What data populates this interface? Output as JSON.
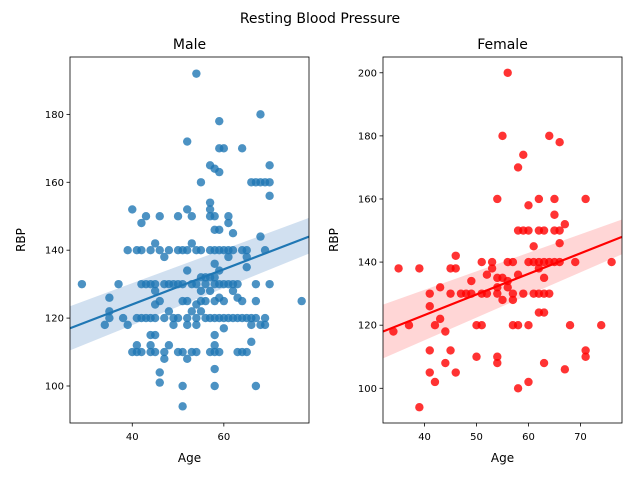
{
  "figure": {
    "suptitle": "Resting Blood Pressure"
  },
  "chart_data": [
    {
      "type": "scatter",
      "title": "Male",
      "xlabel": "Age",
      "ylabel": "RBP",
      "xlim": [
        26.4,
        78.6
      ],
      "ylim": [
        89.1,
        196.9
      ],
      "xticks": [
        40,
        60
      ],
      "yticks": [
        100,
        120,
        140,
        160,
        180
      ],
      "color": "#1f77b4",
      "band_color": "#c5d8ec",
      "regression": {
        "x": [
          26.4,
          78.6
        ],
        "y": [
          117.0,
          144.0
        ],
        "ci_lower": [
          110.5,
          139.0
        ],
        "ci_upper": [
          123.5,
          149.5
        ]
      },
      "points": [
        [
          29,
          130
        ],
        [
          34,
          118
        ],
        [
          35,
          126
        ],
        [
          35,
          122
        ],
        [
          35,
          120
        ],
        [
          37,
          130
        ],
        [
          38,
          120
        ],
        [
          39,
          118
        ],
        [
          39,
          140
        ],
        [
          40,
          152
        ],
        [
          40,
          110
        ],
        [
          41,
          140
        ],
        [
          41,
          120
        ],
        [
          41,
          112
        ],
        [
          41,
          110
        ],
        [
          42,
          140
        ],
        [
          42,
          130
        ],
        [
          42,
          120
        ],
        [
          42,
          110
        ],
        [
          42,
          148
        ],
        [
          43,
          130
        ],
        [
          43,
          120
        ],
        [
          43,
          150
        ],
        [
          44,
          140
        ],
        [
          44,
          130
        ],
        [
          44,
          120
        ],
        [
          44,
          115
        ],
        [
          44,
          112
        ],
        [
          44,
          110
        ],
        [
          45,
          142
        ],
        [
          45,
          130
        ],
        [
          45,
          128
        ],
        [
          45,
          124
        ],
        [
          45,
          120
        ],
        [
          45,
          115
        ],
        [
          45,
          110
        ],
        [
          46,
          140
        ],
        [
          46,
          150
        ],
        [
          46,
          125
        ],
        [
          46,
          104
        ],
        [
          46,
          101
        ],
        [
          47,
          138
        ],
        [
          47,
          130
        ],
        [
          47,
          120
        ],
        [
          47,
          110
        ],
        [
          47,
          108
        ],
        [
          48,
          140
        ],
        [
          48,
          130
        ],
        [
          48,
          122
        ],
        [
          48,
          112
        ],
        [
          49,
          130
        ],
        [
          49,
          120
        ],
        [
          49,
          118
        ],
        [
          50,
          140
        ],
        [
          50,
          150
        ],
        [
          50,
          130
        ],
        [
          50,
          120
        ],
        [
          50,
          110
        ],
        [
          51,
          140
        ],
        [
          51,
          130
        ],
        [
          51,
          125
        ],
        [
          51,
          110
        ],
        [
          51,
          100
        ],
        [
          51,
          94
        ],
        [
          52,
          172
        ],
        [
          52,
          152
        ],
        [
          52,
          140
        ],
        [
          52,
          134
        ],
        [
          52,
          125
        ],
        [
          52,
          120
        ],
        [
          52,
          118
        ],
        [
          52,
          108
        ],
        [
          53,
          150
        ],
        [
          53,
          142
        ],
        [
          53,
          130
        ],
        [
          53,
          122
        ],
        [
          53,
          110
        ],
        [
          54,
          192
        ],
        [
          54,
          140
        ],
        [
          54,
          130
        ],
        [
          54,
          124
        ],
        [
          54,
          120
        ],
        [
          54,
          118
        ],
        [
          54,
          110
        ],
        [
          55,
          160
        ],
        [
          55,
          140
        ],
        [
          55,
          132
        ],
        [
          55,
          128
        ],
        [
          55,
          125
        ],
        [
          55,
          122
        ],
        [
          56,
          130
        ],
        [
          56,
          120
        ],
        [
          56,
          132
        ],
        [
          56,
          125
        ],
        [
          57,
          165
        ],
        [
          57,
          154
        ],
        [
          57,
          152
        ],
        [
          57,
          150
        ],
        [
          57,
          140
        ],
        [
          57,
          132
        ],
        [
          57,
          128
        ],
        [
          57,
          120
        ],
        [
          57,
          110
        ],
        [
          58,
          164
        ],
        [
          58,
          150
        ],
        [
          58,
          146
        ],
        [
          58,
          140
        ],
        [
          58,
          136
        ],
        [
          58,
          132
        ],
        [
          58,
          130
        ],
        [
          58,
          125
        ],
        [
          58,
          120
        ],
        [
          58,
          115
        ],
        [
          58,
          112
        ],
        [
          58,
          110
        ],
        [
          58,
          105
        ],
        [
          58,
          100
        ],
        [
          59,
          178
        ],
        [
          59,
          170
        ],
        [
          59,
          163
        ],
        [
          59,
          146
        ],
        [
          59,
          140
        ],
        [
          59,
          134
        ],
        [
          59,
          130
        ],
        [
          59,
          126
        ],
        [
          59,
          120
        ],
        [
          59,
          110
        ],
        [
          60,
          170
        ],
        [
          60,
          140
        ],
        [
          60,
          130
        ],
        [
          60,
          125
        ],
        [
          60,
          120
        ],
        [
          60,
          117
        ],
        [
          61,
          150
        ],
        [
          61,
          148
        ],
        [
          61,
          140
        ],
        [
          61,
          138
        ],
        [
          61,
          130
        ],
        [
          61,
          120
        ],
        [
          62,
          145
        ],
        [
          62,
          140
        ],
        [
          62,
          130
        ],
        [
          62,
          128
        ],
        [
          62,
          120
        ],
        [
          63,
          130
        ],
        [
          63,
          126
        ],
        [
          63,
          120
        ],
        [
          63,
          110
        ],
        [
          64,
          170
        ],
        [
          64,
          140
        ],
        [
          64,
          125
        ],
        [
          64,
          120
        ],
        [
          64,
          110
        ],
        [
          65,
          140
        ],
        [
          65,
          138
        ],
        [
          65,
          135
        ],
        [
          65,
          120
        ],
        [
          65,
          110
        ],
        [
          66,
          160
        ],
        [
          66,
          120
        ],
        [
          66,
          118
        ],
        [
          66,
          113
        ],
        [
          67,
          160
        ],
        [
          67,
          130
        ],
        [
          67,
          125
        ],
        [
          67,
          120
        ],
        [
          67,
          100
        ],
        [
          68,
          180
        ],
        [
          68,
          160
        ],
        [
          68,
          144
        ],
        [
          68,
          118
        ],
        [
          69,
          160
        ],
        [
          69,
          140
        ],
        [
          69,
          120
        ],
        [
          69,
          118
        ],
        [
          70,
          165
        ],
        [
          70,
          160
        ],
        [
          70,
          156
        ],
        [
          70,
          130
        ],
        [
          77,
          125
        ]
      ]
    },
    {
      "type": "scatter",
      "title": "Female",
      "xlabel": "Age",
      "ylabel": "RBP",
      "xlim": [
        32.0,
        78.0
      ],
      "ylim": [
        89.0,
        205.0
      ],
      "xticks": [
        40,
        50,
        60,
        70
      ],
      "yticks": [
        100,
        120,
        140,
        160,
        180,
        200
      ],
      "color": "#ff0000",
      "band_color": "#ffcccc",
      "regression": {
        "x": [
          32.0,
          78.0
        ],
        "y": [
          118.0,
          148.0
        ],
        "ci_lower": [
          109.5,
          142.5
        ],
        "ci_upper": [
          126.5,
          153.5
        ]
      },
      "points": [
        [
          34,
          118
        ],
        [
          35,
          138
        ],
        [
          37,
          120
        ],
        [
          39,
          138
        ],
        [
          39,
          94
        ],
        [
          41,
          130
        ],
        [
          41,
          126
        ],
        [
          41,
          112
        ],
        [
          41,
          105
        ],
        [
          42,
          120
        ],
        [
          42,
          102
        ],
        [
          43,
          132
        ],
        [
          43,
          122
        ],
        [
          44,
          118
        ],
        [
          44,
          108
        ],
        [
          45,
          138
        ],
        [
          45,
          130
        ],
        [
          45,
          112
        ],
        [
          46,
          142
        ],
        [
          46,
          138
        ],
        [
          46,
          105
        ],
        [
          47,
          130
        ],
        [
          48,
          130
        ],
        [
          49,
          134
        ],
        [
          49,
          130
        ],
        [
          50,
          120
        ],
        [
          50,
          110
        ],
        [
          51,
          140
        ],
        [
          51,
          130
        ],
        [
          51,
          120
        ],
        [
          52,
          136
        ],
        [
          52,
          130
        ],
        [
          53,
          140
        ],
        [
          53,
          138
        ],
        [
          54,
          160
        ],
        [
          54,
          135
        ],
        [
          54,
          132
        ],
        [
          54,
          130
        ],
        [
          54,
          110
        ],
        [
          54,
          108
        ],
        [
          55,
          180
        ],
        [
          55,
          135
        ],
        [
          55,
          128
        ],
        [
          56,
          200
        ],
        [
          56,
          140
        ],
        [
          56,
          134
        ],
        [
          56,
          132
        ],
        [
          57,
          140
        ],
        [
          57,
          130
        ],
        [
          57,
          128
        ],
        [
          57,
          120
        ],
        [
          58,
          170
        ],
        [
          58,
          150
        ],
        [
          58,
          136
        ],
        [
          58,
          120
        ],
        [
          58,
          100
        ],
        [
          59,
          174
        ],
        [
          59,
          150
        ],
        [
          59,
          130
        ],
        [
          60,
          158
        ],
        [
          60,
          150
        ],
        [
          60,
          140
        ],
        [
          60,
          120
        ],
        [
          60,
          102
        ],
        [
          61,
          145
        ],
        [
          61,
          140
        ],
        [
          61,
          130
        ],
        [
          62,
          160
        ],
        [
          62,
          150
        ],
        [
          62,
          140
        ],
        [
          62,
          138
        ],
        [
          62,
          130
        ],
        [
          62,
          124
        ],
        [
          63,
          150
        ],
        [
          63,
          140
        ],
        [
          63,
          135
        ],
        [
          63,
          130
        ],
        [
          63,
          124
        ],
        [
          63,
          108
        ],
        [
          64,
          180
        ],
        [
          64,
          140
        ],
        [
          64,
          130
        ],
        [
          65,
          160
        ],
        [
          65,
          155
        ],
        [
          65,
          150
        ],
        [
          65,
          140
        ],
        [
          66,
          178
        ],
        [
          66,
          150
        ],
        [
          66,
          146
        ],
        [
          66,
          140
        ],
        [
          67,
          152
        ],
        [
          67,
          106
        ],
        [
          68,
          120
        ],
        [
          69,
          140
        ],
        [
          71,
          160
        ],
        [
          71,
          112
        ],
        [
          71,
          110
        ],
        [
          74,
          120
        ],
        [
          76,
          140
        ]
      ]
    }
  ]
}
